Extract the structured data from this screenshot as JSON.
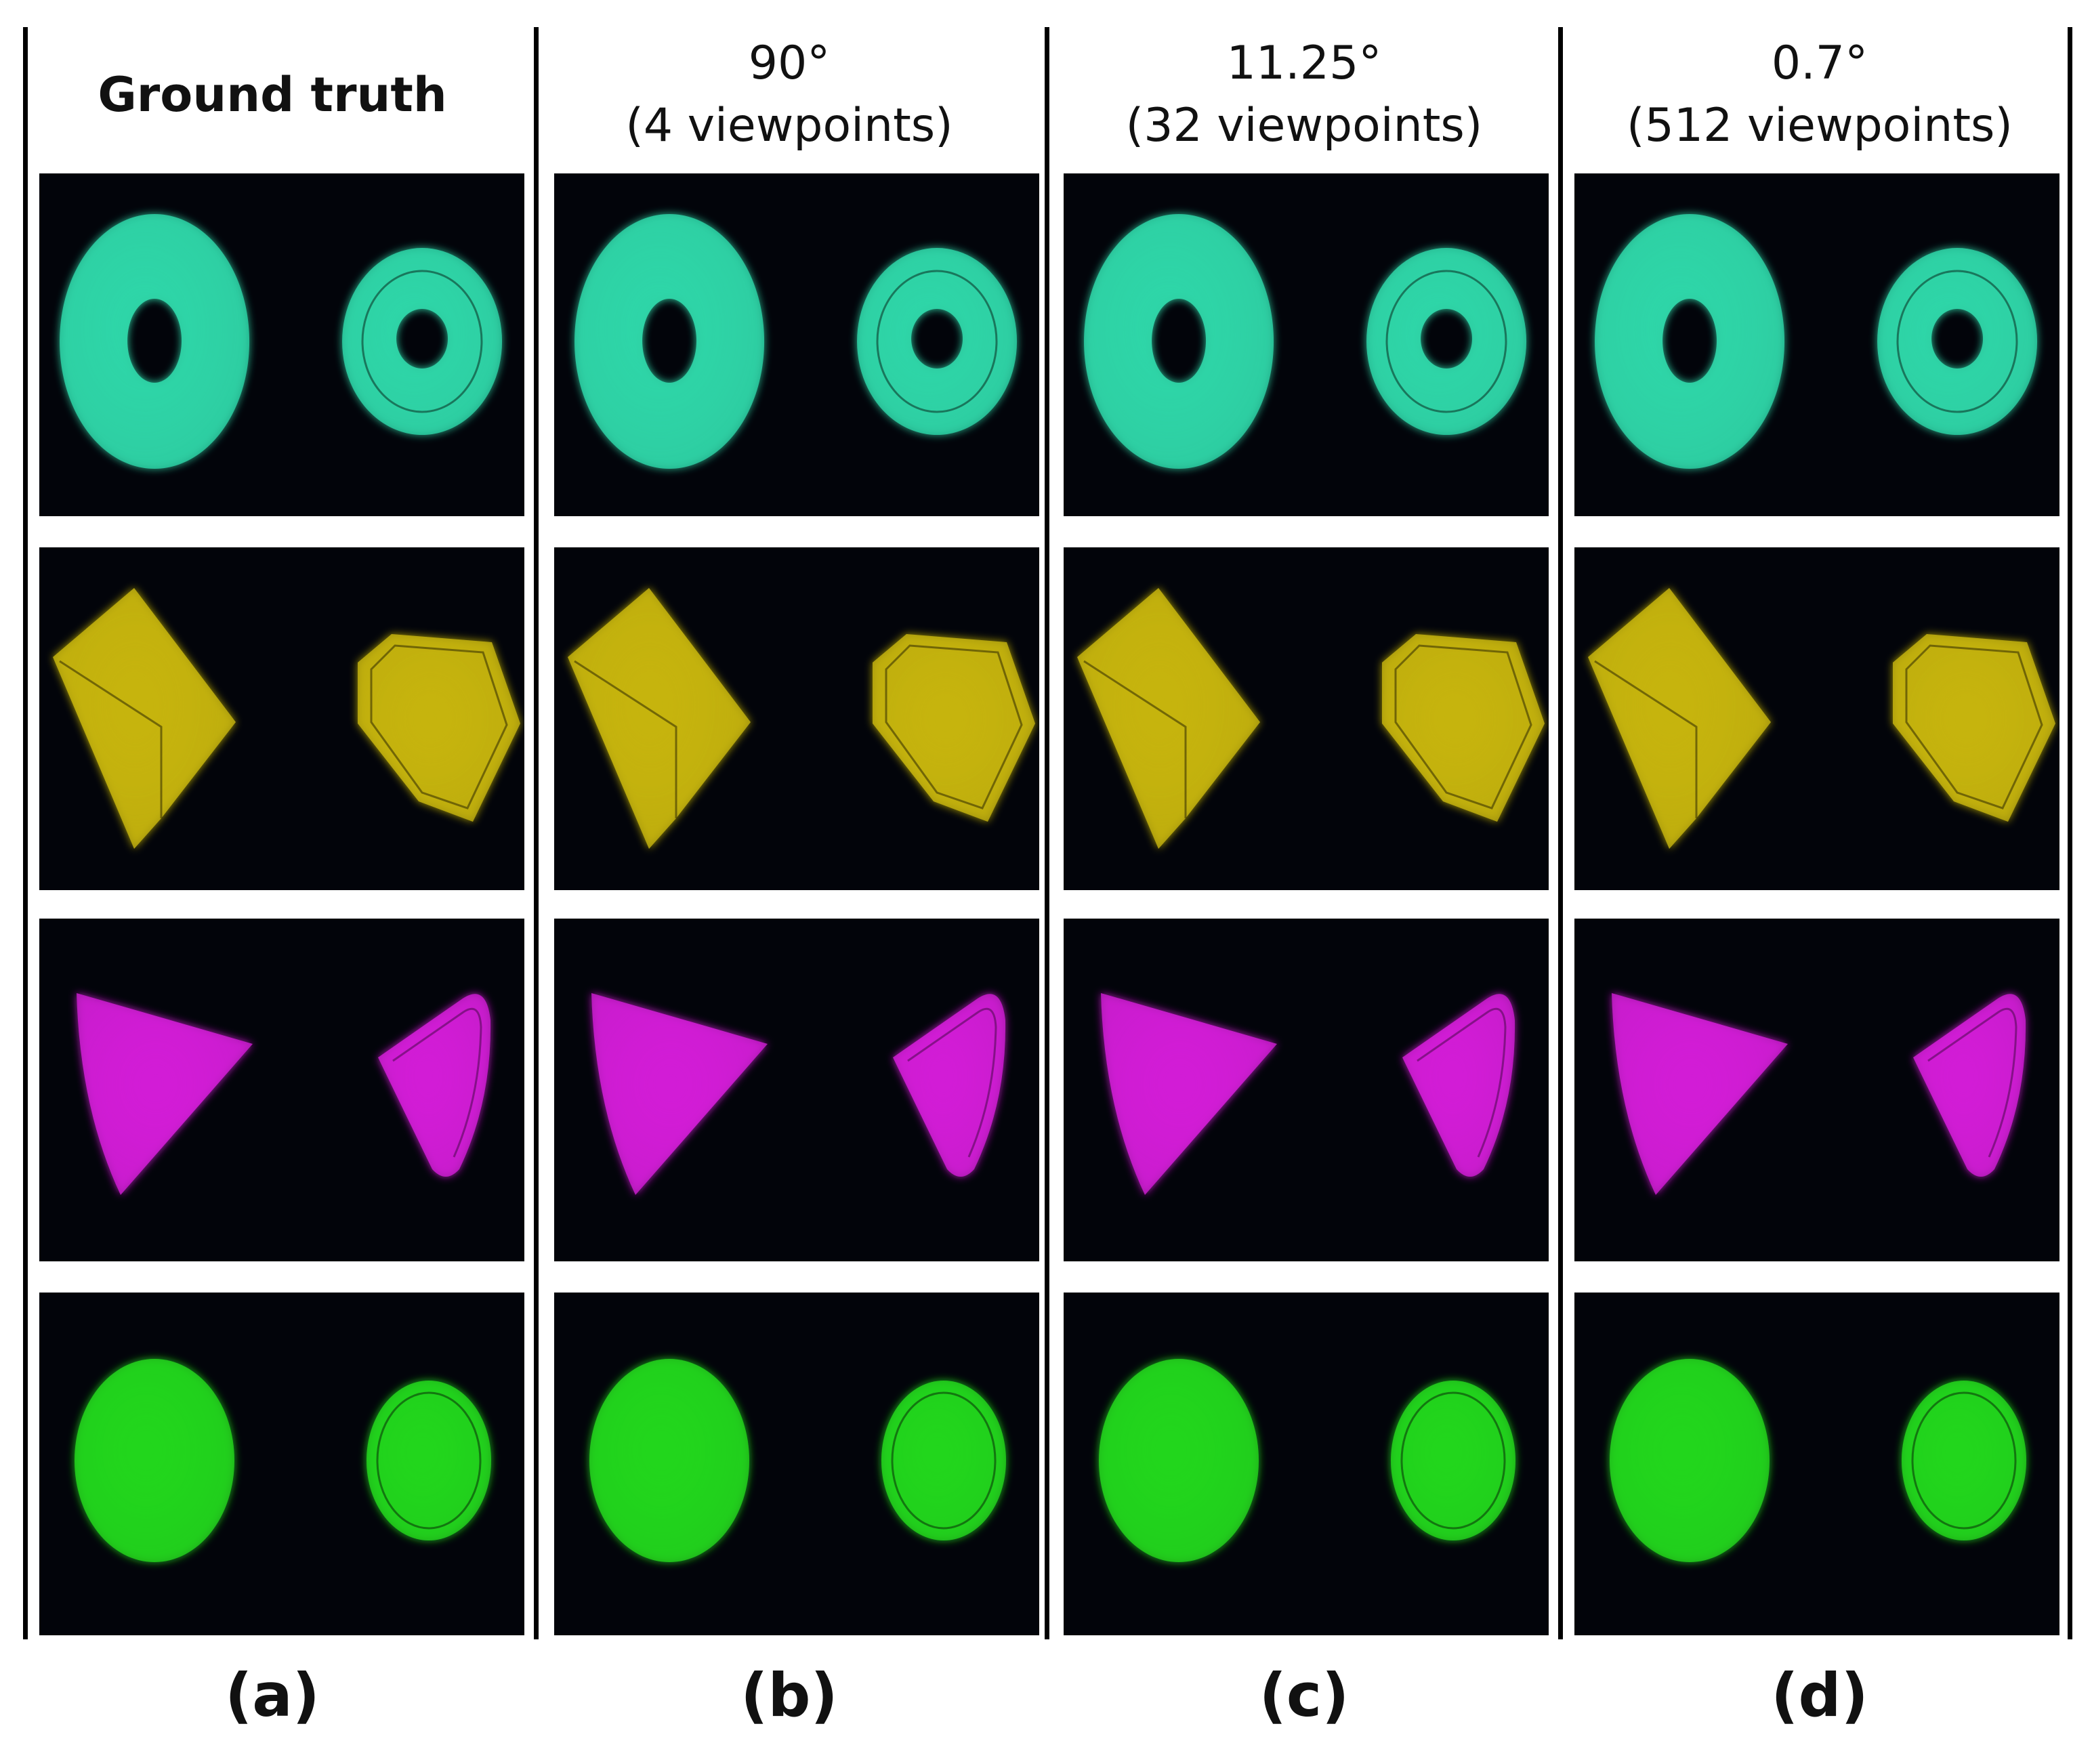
{
  "columns": [
    {
      "id": "a",
      "header_line1": "Ground truth",
      "header_line2": "",
      "label": "(a)"
    },
    {
      "id": "b",
      "header_line1": "90°",
      "header_line2": "(4 viewpoints)",
      "label": "(b)"
    },
    {
      "id": "c",
      "header_line1": "11.25°",
      "header_line2": "(32 viewpoints)",
      "label": "(c)"
    },
    {
      "id": "d",
      "header_line1": "0.7°",
      "header_line2": "(512 viewpoints)",
      "label": "(d)"
    }
  ],
  "rows": [
    {
      "object": "torus-icon",
      "color": "#2ed6a8"
    },
    {
      "object": "cube-icon",
      "color": "#c6b40e"
    },
    {
      "object": "cone-icon",
      "color": "#d21cd6"
    },
    {
      "object": "sphere-icon",
      "color": "#22d61c"
    }
  ],
  "colors": {
    "background": "#ffffff",
    "panel_background": "#02040a",
    "text": "#111111"
  }
}
